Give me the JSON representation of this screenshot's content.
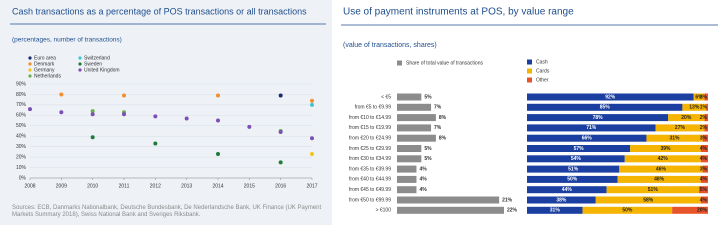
{
  "chart_data": [
    {
      "type": "scatter",
      "title": "Cash transactions as a percentage of POS transactions or all transactions",
      "subtitle": "(percentages, number of transactions)",
      "x": [
        2008,
        2009,
        2010,
        2011,
        2012,
        2013,
        2014,
        2015,
        2016,
        2017
      ],
      "xlim": [
        2008,
        2017
      ],
      "xticks": [
        2008,
        2009,
        2010,
        2011,
        2012,
        2013,
        2014,
        2015,
        2016,
        2017
      ],
      "ylim": [
        0,
        90
      ],
      "yticks": [
        {
          "value": 0,
          "label": "0%"
        },
        {
          "value": 10,
          "label": "10%"
        },
        {
          "value": 20,
          "label": "20%"
        },
        {
          "value": 30,
          "label": "30%"
        },
        {
          "value": 40,
          "label": "40%"
        },
        {
          "value": 50,
          "label": "50%"
        },
        {
          "value": 60,
          "label": "60%"
        },
        {
          "value": 70,
          "label": "70%"
        },
        {
          "value": 80,
          "label": "80%"
        },
        {
          "value": 90,
          "label": "90%"
        }
      ],
      "grid": true,
      "series": [
        {
          "name": "Euro area",
          "color": "#1a2b6d",
          "values": [
            null,
            null,
            null,
            null,
            null,
            null,
            null,
            null,
            79,
            null
          ]
        },
        {
          "name": "Denmark",
          "color": "#f28e2b",
          "values": [
            null,
            80,
            null,
            79,
            null,
            null,
            79,
            null,
            null,
            74
          ]
        },
        {
          "name": "Germany",
          "color": "#f5c518",
          "values": [
            null,
            null,
            null,
            null,
            null,
            null,
            null,
            null,
            null,
            23
          ]
        },
        {
          "name": "Netherlands",
          "color": "#6ab04c",
          "values": [
            null,
            null,
            64,
            63,
            null,
            null,
            null,
            null,
            45,
            null
          ]
        },
        {
          "name": "Switzerland",
          "color": "#3ec6d4",
          "values": [
            null,
            null,
            null,
            null,
            null,
            null,
            null,
            null,
            null,
            70
          ]
        },
        {
          "name": "Sweden",
          "color": "#1e7b3a",
          "values": [
            null,
            null,
            39,
            null,
            33,
            null,
            23,
            null,
            15,
            null
          ]
        },
        {
          "name": "United Kingdom",
          "color": "#7b4fb5",
          "values": [
            66,
            63,
            61,
            61,
            59,
            57,
            55,
            49,
            44,
            38
          ]
        }
      ],
      "source": "Sources: ECB, Danmarks Nationalbank, Deutsche Bundesbank, De Nederlandsche Bank, UK Finance (UK Payment Markets Summary 2018), Swiss National Bank and Sveriges Riksbank."
    },
    {
      "type": "bar",
      "orientation": "horizontal",
      "title": "Use of payment instruments at POS, by value range",
      "subtitle": "(value of transactions, shares)",
      "categories": [
        "< €5",
        "from €5 to €9.99",
        "from €10 to €14.99",
        "from €15 to €19.99",
        "from €20 to €24.99",
        "from €25 to €29.99",
        "from €30 to €34.99",
        "from €35 to €39.99",
        "from €40 to €44.99",
        "from €45 to €49.99",
        "from €50 to €99.99",
        "> €100"
      ],
      "series": [
        {
          "name": "Share of total value of transactions",
          "color": "#8c8c8c",
          "values": [
            5,
            7,
            8,
            7,
            8,
            5,
            5,
            4,
            4,
            4,
            21,
            22
          ],
          "value_labels": [
            "5%",
            "7%",
            "8%",
            "7%",
            "8%",
            "5%",
            "5%",
            "4%",
            "4%",
            "4%",
            "21%",
            "22%"
          ]
        },
        {
          "name": "Cash",
          "color": "#1b3fa0",
          "values": [
            92,
            85,
            78,
            71,
            66,
            57,
            54,
            51,
            50,
            44,
            38,
            31
          ],
          "value_labels": [
            "92%",
            "85%",
            "78%",
            "71%",
            "66%",
            "57%",
            "54%",
            "51%",
            "50%",
            "44%",
            "38%",
            "31%"
          ]
        },
        {
          "name": "Cards",
          "color": "#f4b400",
          "values": [
            6,
            13,
            20,
            27,
            31,
            39,
            42,
            46,
            46,
            51,
            58,
            50
          ],
          "value_labels": [
            "6%",
            "13%",
            "20%",
            "27%",
            "31%",
            "39%",
            "42%",
            "46%",
            "46%",
            "51%",
            "58%",
            "50%"
          ]
        },
        {
          "name": "Other",
          "color": "#e8542a",
          "values": [
            2,
            1,
            2,
            2,
            3,
            4,
            4,
            3,
            4,
            5,
            4,
            20
          ],
          "value_labels": [
            "2%",
            "1%",
            "2%",
            "2%",
            "3%",
            "4%",
            "4%",
            "3%",
            "4%",
            "5%",
            "4%",
            "20%"
          ]
        }
      ]
    }
  ]
}
